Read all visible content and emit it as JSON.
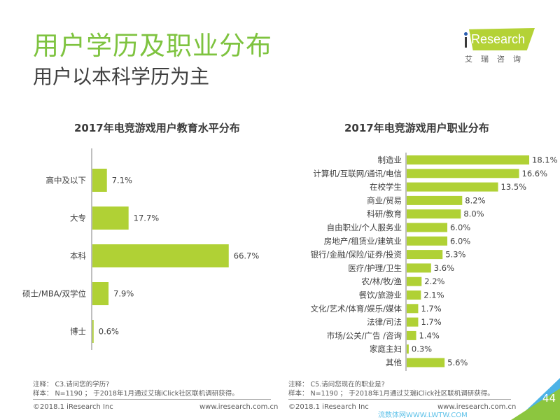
{
  "header": {
    "title": "用户学历及职业分布",
    "subtitle": "用户以本科学历为主",
    "logo_text": "iResearch",
    "logo_cn": "艾瑞咨询"
  },
  "chart_data": [
    {
      "type": "bar",
      "orientation": "horizontal",
      "title": "2017年电竞游戏用户教育水平分布",
      "categories": [
        "高中及以下",
        "大专",
        "本科",
        "硕士/MBA/双学位",
        "博士"
      ],
      "values": [
        7.1,
        17.7,
        66.7,
        7.9,
        0.6
      ],
      "value_labels": [
        "7.1%",
        "17.7%",
        "66.7%",
        "7.9%",
        "0.6%"
      ],
      "unit": "%",
      "color": "#b0d135",
      "xlim": [
        0,
        100
      ],
      "grid": false,
      "legend": "none"
    },
    {
      "type": "bar",
      "orientation": "horizontal",
      "title": "2017年电竞游戏用户职业分布",
      "categories": [
        "制造业",
        "计算机/互联网/通讯/电信",
        "在校学生",
        "商业/贸易",
        "科研/教育",
        "自由职业/个人服务业",
        "房地产/租赁业/建筑业",
        "银行/金融/保险/证券/投资",
        "医疗/护理/卫生",
        "农/林/牧/渔",
        "餐饮/旅游业",
        "文化/艺术/体育/娱乐/媒体",
        "法律/司法",
        "市场/公关/广告 /咨询",
        "家庭主妇",
        "其他"
      ],
      "values": [
        18.1,
        16.6,
        13.5,
        8.2,
        8.0,
        6.0,
        6.0,
        5.3,
        3.6,
        2.2,
        2.1,
        1.7,
        1.7,
        1.4,
        0.3,
        5.6
      ],
      "value_labels": [
        "18.1%",
        "16.6%",
        "13.5%",
        "8.2%",
        "8.0%",
        "6.0%",
        "6.0%",
        "5.3%",
        "3.6%",
        "2.2%",
        "2.1%",
        "1.7%",
        "1.7%",
        "1.4%",
        "0.3%",
        "5.6%"
      ],
      "unit": "%",
      "color": "#b0d135",
      "xlim": [
        0,
        20
      ],
      "grid": false,
      "legend": "none"
    }
  ],
  "notes": [
    {
      "note_line": "注释：  C3.请问您的学历?",
      "sample_line": "样本：  N=1190 ；  于2018年1月通过艾瑞iClick社区联机调研获得。"
    },
    {
      "note_line": "注释：  C5.请问您现在的职业是?",
      "sample_line": "样本：  N=1190 ；  于2018年1月通过艾瑞iClick社区联机调研获得。"
    }
  ],
  "footer": {
    "copyright_left": "©2018.1 iResearch Inc",
    "website_left": "www.iresearch.com.cn",
    "copyright_right": "©2018.1 iResearch Inc",
    "website_right": "www.iresearch.com.cn",
    "page_number": "44",
    "watermark": "流数体网WWW.LWTW.COM"
  },
  "colors": {
    "title_green": "#7ec33f",
    "bar_green": "#b0d135",
    "corner_blue": "#4db3e6",
    "corner_green": "#8cc63f"
  }
}
